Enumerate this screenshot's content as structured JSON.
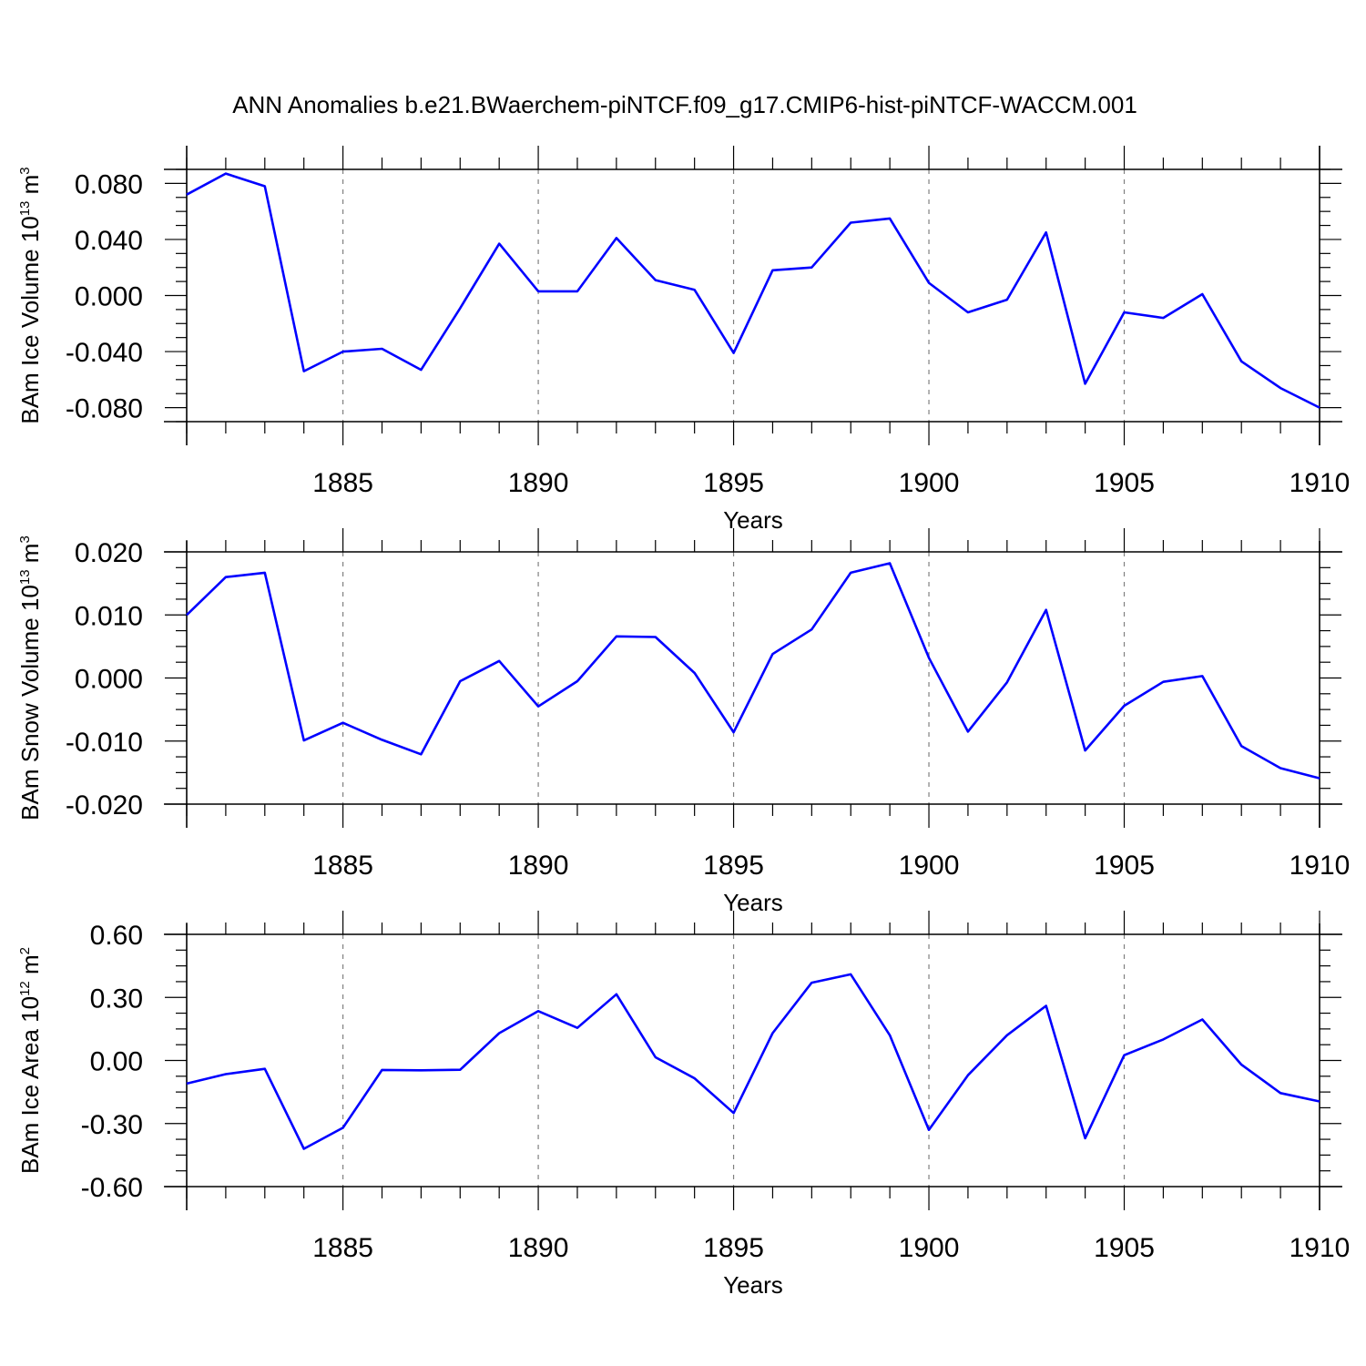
{
  "title": "ANN Anomalies b.e21.BWaerchem-piNTCF.f09_g17.CMIP6-hist-piNTCF-WACCM.001",
  "line_color": "#0000ff",
  "grid_color": "#808080",
  "chart_data": [
    {
      "type": "line",
      "xlabel": "Years",
      "ylabel": {
        "text": "BAm Ice Volume 10",
        "sup1": "13",
        "unit": " m",
        "sup2": "3"
      },
      "ylim": [
        -0.09,
        0.09
      ],
      "xlim": [
        1881,
        1910
      ],
      "yticks": [
        -0.08,
        -0.04,
        0.0,
        0.04,
        0.08
      ],
      "ytick_labels": [
        "-0.080",
        "-0.040",
        "0.000",
        "0.040",
        "0.080"
      ],
      "xticks": [
        1885,
        1890,
        1895,
        1900,
        1905,
        1910
      ],
      "xtick_labels": [
        "1885",
        "1890",
        "1895",
        "1900",
        "1905",
        "1910"
      ],
      "grid": "vertical dashed at major x ticks",
      "x": [
        1881,
        1882,
        1883,
        1884,
        1885,
        1886,
        1887,
        1888,
        1889,
        1890,
        1891,
        1892,
        1893,
        1894,
        1895,
        1896,
        1897,
        1898,
        1899,
        1900,
        1901,
        1902,
        1903,
        1904,
        1905,
        1906,
        1907,
        1908,
        1909,
        1910
      ],
      "values": [
        0.072,
        0.087,
        0.078,
        -0.054,
        -0.04,
        -0.038,
        -0.053,
        -0.009,
        0.037,
        0.003,
        0.003,
        0.041,
        0.011,
        0.004,
        -0.041,
        0.018,
        0.02,
        0.052,
        0.055,
        0.009,
        -0.012,
        -0.003,
        0.045,
        -0.063,
        -0.012,
        -0.016,
        0.001,
        -0.047,
        -0.066,
        -0.08
      ]
    },
    {
      "type": "line",
      "xlabel": "Years",
      "ylabel": {
        "text": "BAm Snow Volume 10",
        "sup1": "13",
        "unit": " m",
        "sup2": "3"
      },
      "ylim": [
        -0.02,
        0.02
      ],
      "xlim": [
        1881,
        1910
      ],
      "yticks": [
        -0.02,
        -0.01,
        0.0,
        0.01,
        0.02
      ],
      "ytick_labels": [
        "-0.020",
        "-0.010",
        "0.000",
        "0.010",
        "0.020"
      ],
      "xticks": [
        1885,
        1890,
        1895,
        1900,
        1905,
        1910
      ],
      "xtick_labels": [
        "1885",
        "1890",
        "1895",
        "1900",
        "1905",
        "1910"
      ],
      "grid": "vertical dashed at major x ticks",
      "x": [
        1881,
        1882,
        1883,
        1884,
        1885,
        1886,
        1887,
        1888,
        1889,
        1890,
        1891,
        1892,
        1893,
        1894,
        1895,
        1896,
        1897,
        1898,
        1899,
        1900,
        1901,
        1902,
        1903,
        1904,
        1905,
        1906,
        1907,
        1908,
        1909,
        1910
      ],
      "values": [
        0.01,
        0.016,
        0.0167,
        -0.0099,
        -0.0071,
        -0.0098,
        -0.0121,
        -0.0005,
        0.0027,
        -0.0045,
        -0.0005,
        0.0066,
        0.0065,
        0.0008,
        -0.0086,
        0.0038,
        0.0077,
        0.0167,
        0.0182,
        0.0032,
        -0.0085,
        -0.0007,
        0.0108,
        -0.0115,
        -0.0044,
        -0.0006,
        0.0003,
        -0.0108,
        -0.0143,
        -0.0159
      ]
    },
    {
      "type": "line",
      "xlabel": "Years",
      "ylabel": {
        "text": "BAm Ice Area 10",
        "sup1": "12",
        "unit": " m",
        "sup2": "2"
      },
      "ylim": [
        -0.6,
        0.6
      ],
      "xlim": [
        1881,
        1910
      ],
      "yticks": [
        -0.6,
        -0.3,
        0.0,
        0.3,
        0.6
      ],
      "ytick_labels": [
        "-0.60",
        "-0.30",
        "0.00",
        "0.30",
        "0.60"
      ],
      "xticks": [
        1885,
        1890,
        1895,
        1900,
        1905,
        1910
      ],
      "xtick_labels": [
        "1885",
        "1890",
        "1895",
        "1900",
        "1905",
        "1910"
      ],
      "grid": "vertical dashed at major x ticks",
      "x": [
        1881,
        1882,
        1883,
        1884,
        1885,
        1886,
        1887,
        1888,
        1889,
        1890,
        1891,
        1892,
        1893,
        1894,
        1895,
        1896,
        1897,
        1898,
        1899,
        1900,
        1901,
        1902,
        1903,
        1904,
        1905,
        1906,
        1907,
        1908,
        1909,
        1910
      ],
      "values": [
        -0.11,
        -0.065,
        -0.04,
        -0.42,
        -0.32,
        -0.045,
        -0.047,
        -0.044,
        0.13,
        0.235,
        0.155,
        0.315,
        0.015,
        -0.085,
        -0.25,
        0.13,
        0.37,
        0.41,
        0.12,
        -0.33,
        -0.07,
        0.12,
        0.26,
        -0.37,
        0.025,
        0.1,
        0.195,
        -0.02,
        -0.155,
        -0.195
      ]
    }
  ]
}
